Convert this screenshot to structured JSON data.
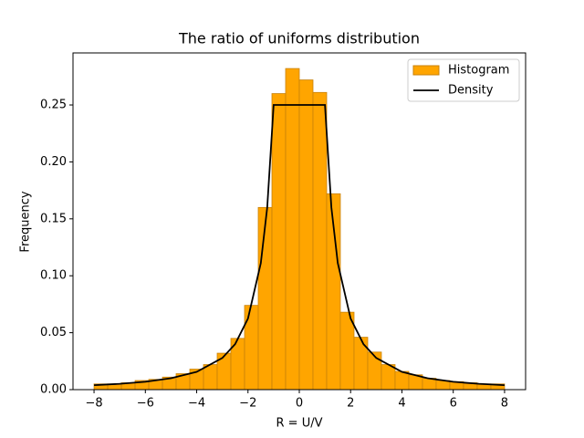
{
  "chart_data": {
    "type": "histogram",
    "title": "The ratio of uniforms distribution",
    "xlabel": "R = U/V",
    "ylabel": "Frequency",
    "bins": [
      -8,
      -7.4667,
      -6.9333,
      -6.4,
      -5.8667,
      -5.3333,
      -4.8,
      -4.2667,
      -3.7333,
      -3.2,
      -2.6667,
      -2.1333,
      -1.6,
      -1.0667,
      -0.5333,
      0,
      0.5333,
      1.0667,
      1.6,
      2.1333,
      2.6667,
      3.2,
      3.7333,
      4.2667,
      4.8,
      5.3333,
      5.8667,
      6.4,
      6.9333,
      7.4667,
      8
    ],
    "series": [
      {
        "name": "Histogram",
        "type": "histogram",
        "color": "#ffa500",
        "edgecolor": "#c8820a",
        "values": [
          0.005,
          0.005,
          0.006,
          0.008,
          0.009,
          0.011,
          0.014,
          0.018,
          0.022,
          0.032,
          0.045,
          0.074,
          0.16,
          0.26,
          0.282,
          0.272,
          0.261,
          0.172,
          0.068,
          0.046,
          0.033,
          0.022,
          0.016,
          0.013,
          0.01,
          0.008,
          0.007,
          0.006,
          0.005,
          0.005
        ]
      },
      {
        "name": "Density",
        "type": "line",
        "color": "#000000",
        "x": [
          -8,
          -7,
          -6,
          -5,
          -4,
          -3,
          -2.5,
          -2,
          -1.5,
          -1.25,
          -1,
          1,
          1.25,
          1.5,
          2,
          2.5,
          3,
          4,
          5,
          6,
          7,
          8
        ],
        "values": [
          0.0039,
          0.0051,
          0.0069,
          0.01,
          0.0156,
          0.0278,
          0.04,
          0.0625,
          0.1111,
          0.16,
          0.25,
          0.25,
          0.16,
          0.1111,
          0.0625,
          0.04,
          0.0278,
          0.0156,
          0.01,
          0.0069,
          0.0051,
          0.0039
        ]
      }
    ],
    "xlim": [
      -8.82,
      8.82
    ],
    "ylim": [
      0,
      0.2957
    ],
    "xticks": [
      {
        "value": -8,
        "label": "−8"
      },
      {
        "value": -6,
        "label": "−6"
      },
      {
        "value": -4,
        "label": "−4"
      },
      {
        "value": -2,
        "label": "−2"
      },
      0,
      2,
      4,
      6,
      8
    ],
    "yticks": [
      {
        "value": 0,
        "label": "0.00"
      },
      {
        "value": 0.05,
        "label": "0.05"
      },
      {
        "value": 0.1,
        "label": "0.10"
      },
      {
        "value": 0.15,
        "label": "0.15"
      },
      {
        "value": 0.2,
        "label": "0.20"
      },
      {
        "value": 0.25,
        "label": "0.25"
      }
    ],
    "legend": "upper right"
  }
}
